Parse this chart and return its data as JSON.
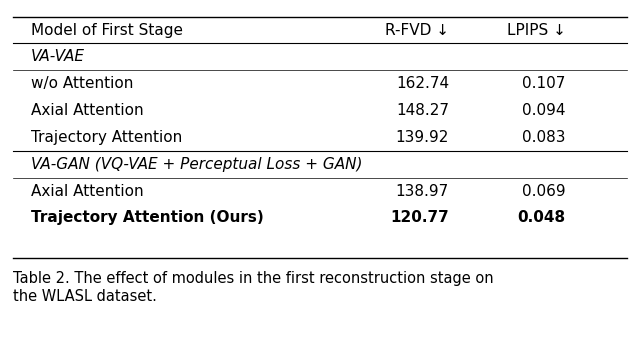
{
  "title": "Table 2. The effect of modules in the first reconstruction stage on\nthe WLASL dataset.",
  "col_headers": [
    "Model of First Stage",
    "R-FVD ↓",
    "LPIPS ↓"
  ],
  "section1_label": "VA-VAE",
  "section1_rows": [
    [
      "w/o Attention",
      "162.74",
      "0.107"
    ],
    [
      "Axial Attention",
      "148.27",
      "0.094"
    ],
    [
      "Trajectory Attention",
      "139.92",
      "0.083"
    ]
  ],
  "section2_label": "VA-GAN (VQ-VAE + Perceptual Loss + GAN)",
  "section2_rows": [
    [
      "Axial Attention",
      "138.97",
      "0.069"
    ],
    [
      "Trajectory Attention (Ours)",
      "120.77",
      "0.048"
    ]
  ],
  "bold_last_row": true,
  "bg_color": "white",
  "text_color": "black",
  "font_size": 11,
  "header_font_size": 11,
  "caption_font_size": 10.5
}
